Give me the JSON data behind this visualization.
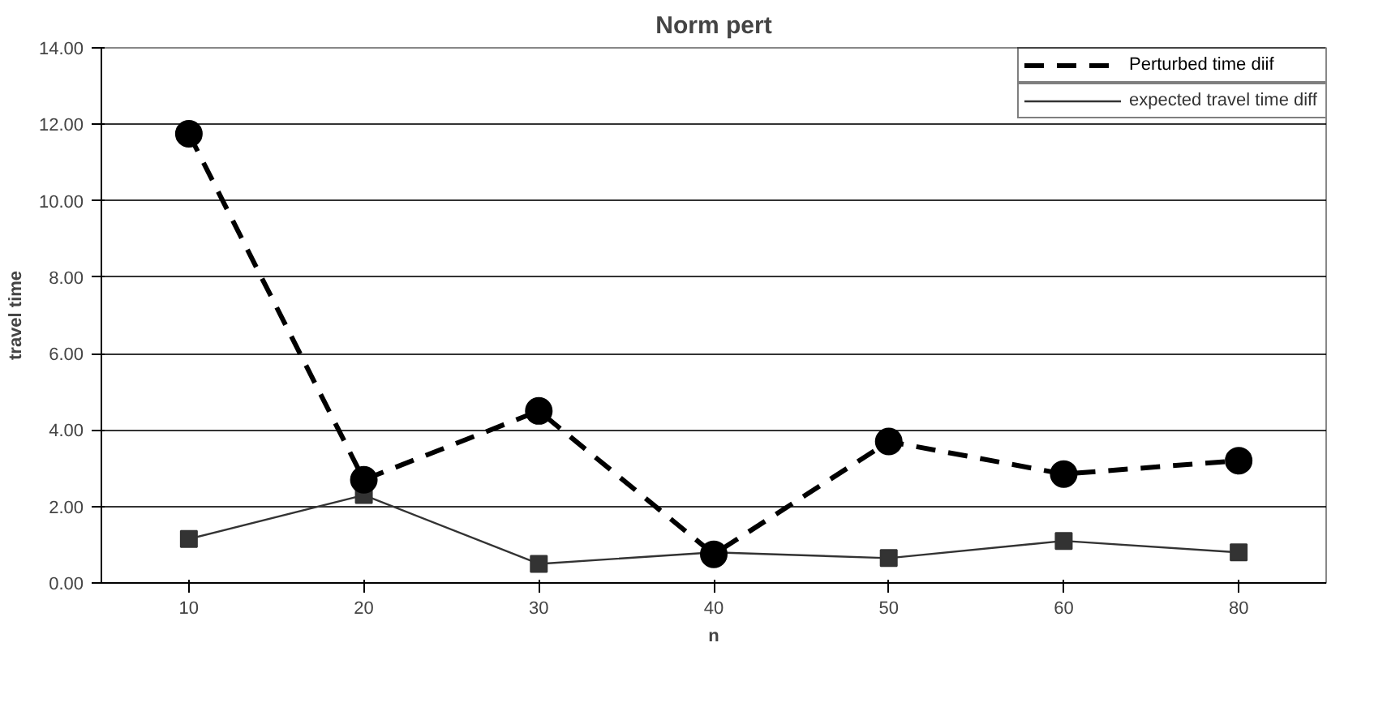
{
  "chart_data": {
    "type": "line",
    "title": "Norm pert",
    "xlabel": "n",
    "ylabel": "travel time",
    "categories": [
      "10",
      "20",
      "30",
      "40",
      "50",
      "60",
      "80"
    ],
    "series": [
      {
        "name": "Perturbed time diif",
        "color": "#000000",
        "line_style": "dashed",
        "marker": "circle",
        "values": [
          11.75,
          2.7,
          4.5,
          0.75,
          3.7,
          2.85,
          3.2
        ]
      },
      {
        "name": "expected travel time diff",
        "color": "#333333",
        "line_style": "solid",
        "marker": "square",
        "values": [
          1.15,
          2.3,
          0.5,
          0.8,
          0.65,
          1.1,
          0.8
        ]
      }
    ],
    "ylim": [
      0,
      14
    ],
    "yticks": [
      {
        "value": 0,
        "label": "0.00"
      },
      {
        "value": 2,
        "label": "2.00"
      },
      {
        "value": 4,
        "label": "4.00"
      },
      {
        "value": 6,
        "label": "6.00"
      },
      {
        "value": 8,
        "label": "8.00"
      },
      {
        "value": 10,
        "label": "10.00"
      },
      {
        "value": 12,
        "label": "12.00"
      },
      {
        "value": 14,
        "label": "14.00"
      }
    ],
    "grid": "y",
    "legend": "top right"
  }
}
